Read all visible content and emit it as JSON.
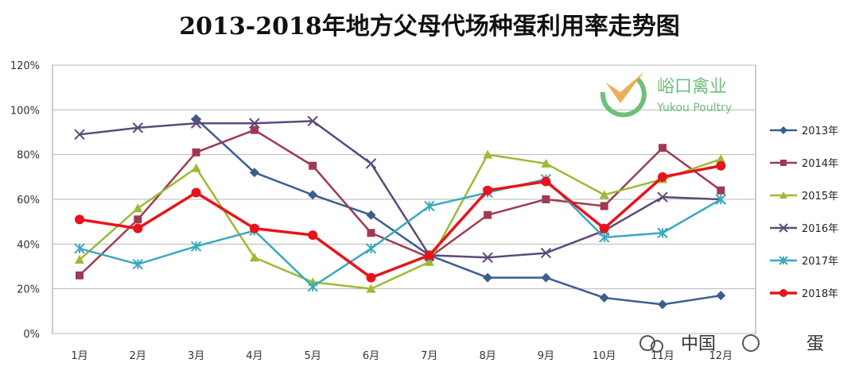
{
  "chart_data": {
    "type": "line",
    "title": "2013-2018年地方父母代场种蛋利用率走势图",
    "xlabel": "",
    "ylabel": "",
    "categories": [
      "1月",
      "2月",
      "3月",
      "4月",
      "5月",
      "6月",
      "7月",
      "8月",
      "9月",
      "10月",
      "11月",
      "12月"
    ],
    "ylim": [
      0,
      120
    ],
    "yticks": [
      "0%",
      "20%",
      "40%",
      "60%",
      "80%",
      "100%",
      "120%"
    ],
    "grid": true,
    "legend_position": "right",
    "series": [
      {
        "name": "2013年",
        "color": "#3a5f8f",
        "marker": "diamond",
        "values": [
          null,
          null,
          96,
          72,
          62,
          53,
          35,
          25,
          25,
          16,
          13,
          17
        ]
      },
      {
        "name": "2014年",
        "color": "#9e3b52",
        "marker": "square",
        "values": [
          26,
          51,
          81,
          91,
          75,
          45,
          34,
          53,
          60,
          57,
          83,
          64
        ]
      },
      {
        "name": "2015年",
        "color": "#9bbb34",
        "marker": "triangle",
        "values": [
          33,
          56,
          74,
          34,
          23,
          20,
          32,
          80,
          76,
          62,
          69,
          78
        ]
      },
      {
        "name": "2016年",
        "color": "#5c4a7a",
        "marker": "x",
        "values": [
          89,
          92,
          94,
          94,
          95,
          76,
          35,
          34,
          36,
          46,
          61,
          60
        ]
      },
      {
        "name": "2017年",
        "color": "#3aa9be",
        "marker": "star",
        "values": [
          38,
          31,
          39,
          46,
          21,
          38,
          57,
          63,
          69,
          43,
          45,
          60
        ]
      },
      {
        "name": "2018年",
        "color": "#e8141b",
        "marker": "circle",
        "values": [
          51,
          47,
          63,
          47,
          44,
          25,
          35,
          64,
          68,
          47,
          70,
          75
        ]
      }
    ]
  },
  "watermark": {
    "name": "峪口禽业",
    "subtitle": "Yukou Poultry",
    "color": "#6dbf7a"
  },
  "footer_watermark": {
    "text": "中国",
    "text2": "蛋",
    "color": "#333333"
  }
}
